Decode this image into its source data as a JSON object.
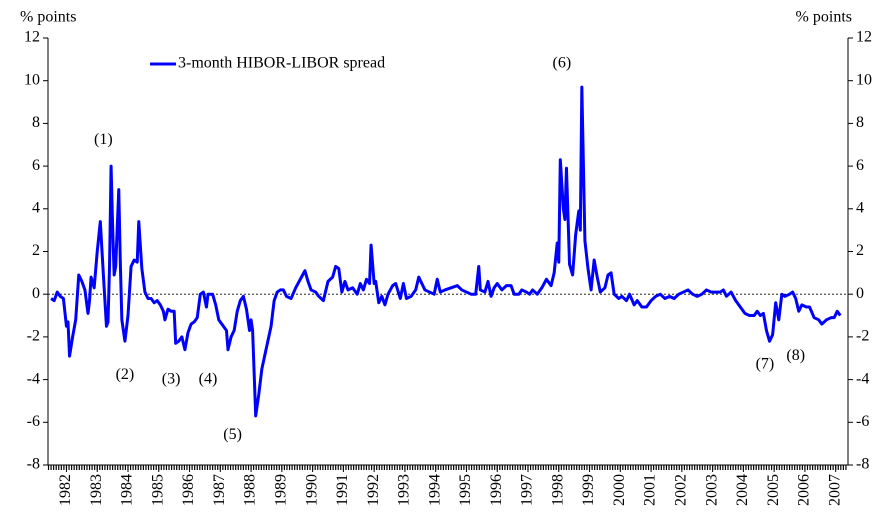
{
  "chart_data": {
    "type": "line",
    "ylabel": "% points",
    "y2label": "% points",
    "xlim": [
      1981.4,
      2007.4
    ],
    "xticks": [
      1982,
      1983,
      1984,
      1985,
      1986,
      1987,
      1988,
      1989,
      1990,
      1991,
      1992,
      1993,
      1994,
      1995,
      1996,
      1997,
      1998,
      1999,
      2000,
      2001,
      2002,
      2003,
      2004,
      2005,
      2006,
      2007
    ],
    "ylim": [
      -8,
      12
    ],
    "yticks": [
      -8,
      -6,
      -4,
      -2,
      0,
      2,
      4,
      6,
      8,
      10,
      12
    ],
    "y2lim": [
      -8,
      12
    ],
    "y2ticks": [
      -8,
      -6,
      -4,
      -2,
      0,
      2,
      4,
      6,
      8,
      10,
      12
    ],
    "zero_line": true,
    "legend": "upper left",
    "x": [
      1981.5,
      1981.6,
      1981.7,
      1981.8,
      1981.9,
      1982.0,
      1982.05,
      1982.1,
      1982.2,
      1982.3,
      1982.4,
      1982.5,
      1982.6,
      1982.7,
      1982.75,
      1982.8,
      1982.9,
      1983.0,
      1983.1,
      1983.2,
      1983.3,
      1983.35,
      1983.4,
      1983.45,
      1983.5,
      1983.55,
      1983.6,
      1983.7,
      1983.75,
      1983.8,
      1983.9,
      1984.0,
      1984.1,
      1984.2,
      1984.3,
      1984.35,
      1984.45,
      1984.55,
      1984.65,
      1984.75,
      1984.85,
      1984.95,
      1985.05,
      1985.15,
      1985.2,
      1985.3,
      1985.4,
      1985.5,
      1985.55,
      1985.65,
      1985.75,
      1985.85,
      1985.95,
      1986.05,
      1986.15,
      1986.25,
      1986.35,
      1986.45,
      1986.55,
      1986.6,
      1986.75,
      1986.85,
      1986.95,
      1987.1,
      1987.2,
      1987.25,
      1987.35,
      1987.45,
      1987.55,
      1987.65,
      1987.75,
      1987.85,
      1987.95,
      1988.0,
      1988.05,
      1988.15,
      1988.25,
      1988.35,
      1988.5,
      1988.65,
      1988.75,
      1988.85,
      1988.95,
      1989.05,
      1989.15,
      1989.3,
      1989.45,
      1989.6,
      1989.75,
      1989.85,
      1989.95,
      1990.1,
      1990.2,
      1990.35,
      1990.5,
      1990.65,
      1990.75,
      1990.85,
      1990.95,
      1991.05,
      1991.15,
      1991.3,
      1991.45,
      1991.55,
      1991.65,
      1991.75,
      1991.85,
      1991.9,
      1992.0,
      1992.05,
      1992.15,
      1992.25,
      1992.35,
      1992.45,
      1992.6,
      1992.7,
      1992.85,
      1992.95,
      1993.05,
      1993.2,
      1993.35,
      1993.45,
      1993.55,
      1993.65,
      1993.8,
      1993.95,
      1994.05,
      1994.15,
      1994.3,
      1994.5,
      1994.7,
      1994.85,
      1995.0,
      1995.15,
      1995.3,
      1995.4,
      1995.45,
      1995.6,
      1995.7,
      1995.8,
      1995.9,
      1996.0,
      1996.15,
      1996.3,
      1996.45,
      1996.55,
      1996.7,
      1996.8,
      1996.95,
      1997.05,
      1997.15,
      1997.3,
      1997.45,
      1997.6,
      1997.75,
      1997.85,
      1997.95,
      1998.0,
      1998.05,
      1998.15,
      1998.2,
      1998.25,
      1998.35,
      1998.45,
      1998.55,
      1998.65,
      1998.7,
      1998.75,
      1998.85,
      1998.95,
      1999.05,
      1999.15,
      1999.25,
      1999.35,
      1999.5,
      1999.6,
      1999.7,
      1999.8,
      1999.95,
      2000.05,
      2000.2,
      2000.3,
      2000.45,
      2000.55,
      2000.7,
      2000.85,
      2001.0,
      2001.15,
      2001.3,
      2001.45,
      2001.6,
      2001.75,
      2001.9,
      2002.05,
      2002.2,
      2002.35,
      2002.5,
      2002.65,
      2002.8,
      2002.95,
      2003.1,
      2003.25,
      2003.35,
      2003.45,
      2003.6,
      2003.75,
      2003.9,
      2004.05,
      2004.2,
      2004.35,
      2004.45,
      2004.55,
      2004.65,
      2004.75,
      2004.85,
      2004.95,
      2005.05,
      2005.15,
      2005.25,
      2005.35,
      2005.5,
      2005.6,
      2005.7,
      2005.8,
      2005.9,
      2006.05,
      2006.15,
      2006.3,
      2006.45,
      2006.55,
      2006.7,
      2006.85,
      2006.95,
      2007.05,
      2007.15
    ],
    "series": [
      {
        "name": "3-month HIBOR-LIBOR spread",
        "color": "#0000ff",
        "values": [
          -0.2,
          -0.3,
          0.1,
          -0.1,
          -0.2,
          -1.5,
          -1.3,
          -2.9,
          -2.0,
          -1.2,
          0.9,
          0.6,
          0.2,
          -0.9,
          -0.3,
          0.8,
          0.3,
          2.0,
          3.4,
          0.9,
          -1.5,
          -1.3,
          1.3,
          6.0,
          3.2,
          0.9,
          1.3,
          4.9,
          1.5,
          -1.2,
          -2.2,
          -1.0,
          1.3,
          1.6,
          1.5,
          3.4,
          1.2,
          0.1,
          -0.2,
          -0.2,
          -0.4,
          -0.3,
          -0.5,
          -0.8,
          -1.2,
          -0.7,
          -0.8,
          -0.8,
          -2.3,
          -2.2,
          -2.0,
          -2.6,
          -1.8,
          -1.4,
          -1.3,
          -1.1,
          0.0,
          0.1,
          -0.6,
          0.0,
          0.0,
          -0.5,
          -1.2,
          -1.5,
          -1.7,
          -2.6,
          -2.0,
          -1.7,
          -0.8,
          -0.3,
          -0.1,
          -0.7,
          -1.7,
          -1.2,
          -1.7,
          -5.7,
          -4.7,
          -3.5,
          -2.5,
          -1.5,
          -0.3,
          0.1,
          0.2,
          0.2,
          -0.1,
          -0.2,
          0.3,
          0.7,
          1.1,
          0.6,
          0.2,
          0.1,
          -0.1,
          -0.3,
          0.6,
          0.8,
          1.3,
          1.2,
          0.1,
          0.6,
          0.2,
          0.3,
          0.0,
          0.5,
          0.2,
          0.7,
          0.5,
          2.3,
          0.5,
          0.6,
          -0.4,
          -0.1,
          -0.5,
          0.0,
          0.4,
          0.5,
          -0.2,
          0.5,
          -0.2,
          -0.1,
          0.2,
          0.8,
          0.5,
          0.2,
          0.1,
          0.0,
          0.7,
          0.1,
          0.2,
          0.3,
          0.4,
          0.2,
          0.1,
          0.0,
          0.0,
          1.3,
          0.2,
          0.1,
          0.6,
          -0.1,
          0.3,
          0.5,
          0.2,
          0.4,
          0.4,
          0.0,
          0.0,
          0.2,
          0.1,
          0.0,
          0.2,
          0.0,
          0.3,
          0.7,
          0.4,
          1.0,
          2.4,
          1.5,
          6.3,
          4.0,
          3.5,
          5.9,
          1.4,
          0.9,
          2.8,
          3.9,
          3.0,
          9.7,
          2.5,
          1.2,
          0.2,
          1.6,
          0.8,
          0.1,
          0.3,
          0.9,
          1.0,
          0.0,
          -0.2,
          -0.1,
          -0.3,
          0.0,
          -0.5,
          -0.3,
          -0.6,
          -0.6,
          -0.3,
          -0.1,
          0.0,
          -0.2,
          -0.1,
          -0.2,
          0.0,
          0.1,
          0.2,
          0.0,
          -0.1,
          0.0,
          0.2,
          0.1,
          0.1,
          0.1,
          0.2,
          -0.1,
          0.1,
          -0.3,
          -0.6,
          -0.9,
          -1.0,
          -1.0,
          -0.8,
          -1.0,
          -0.9,
          -1.7,
          -2.2,
          -1.9,
          -0.4,
          -1.2,
          0.0,
          -0.1,
          0.0,
          0.1,
          -0.2,
          -0.8,
          -0.5,
          -0.6,
          -0.6,
          -1.1,
          -1.2,
          -1.4,
          -1.2,
          -1.1,
          -1.1,
          -0.8,
          -1.0
        ]
      }
    ],
    "annotations": [
      {
        "text": "(1)",
        "x": 1983.2,
        "y": 7.2
      },
      {
        "text": "(2)",
        "x": 1983.9,
        "y": -3.8
      },
      {
        "text": "(3)",
        "x": 1985.4,
        "y": -4.0
      },
      {
        "text": "(4)",
        "x": 1986.6,
        "y": -4.0
      },
      {
        "text": "(5)",
        "x": 1987.4,
        "y": -6.6
      },
      {
        "text": "(6)",
        "x": 1998.1,
        "y": 10.8
      },
      {
        "text": "(7)",
        "x": 2004.7,
        "y": -3.3
      },
      {
        "text": "(8)",
        "x": 2005.7,
        "y": -2.9
      }
    ]
  }
}
